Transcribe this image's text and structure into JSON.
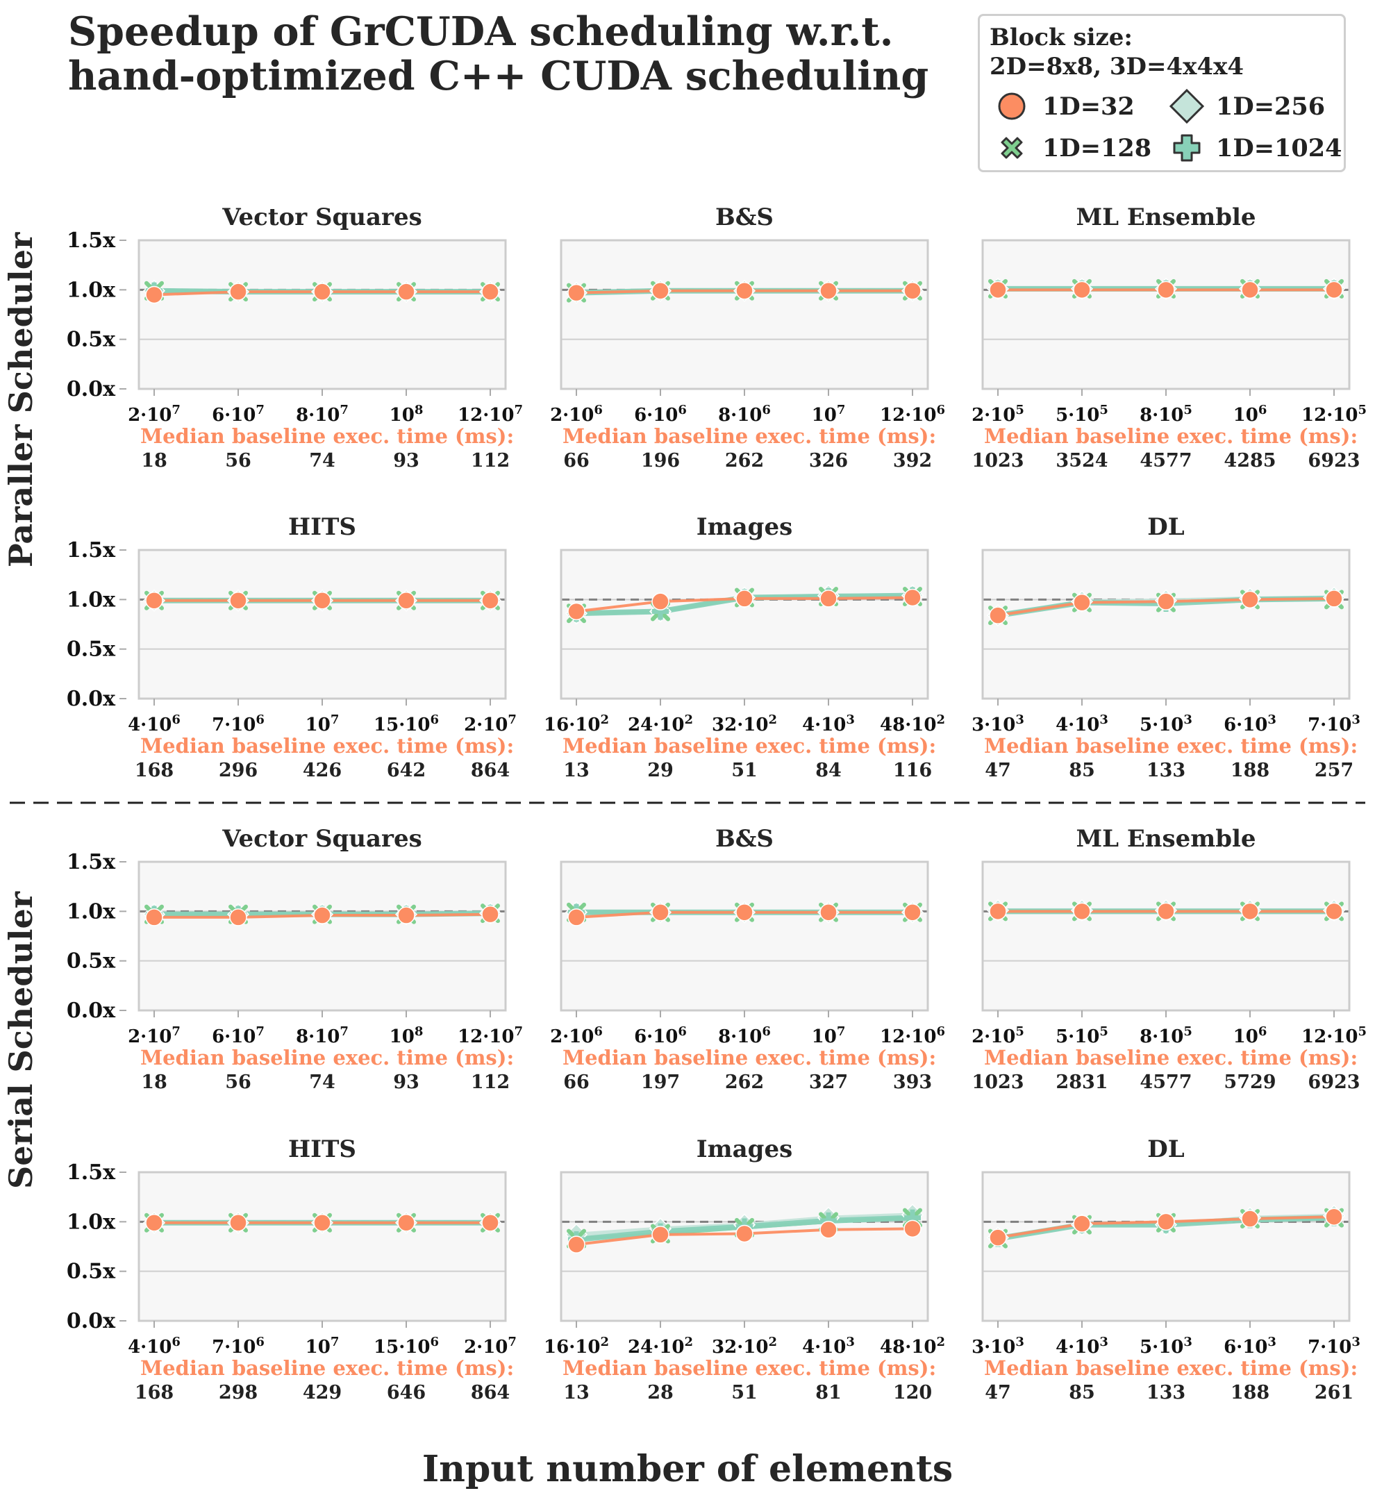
{
  "title": {
    "line1": "Speedup of GrCUDA scheduling w.r.t.",
    "line2": "hand-optimized C++ CUDA scheduling"
  },
  "legend": {
    "title_line1": "Block size:",
    "title_line2": "2D=8x8, 3D=4x4x4",
    "items": [
      {
        "label": "1D=32",
        "marker": "circle",
        "color": "#fc8d62"
      },
      {
        "label": "1D=256",
        "marker": "diamond",
        "color": "#c5e4da"
      },
      {
        "label": "1D=128",
        "marker": "x",
        "color": "#7fcf8f"
      },
      {
        "label": "1D=1024",
        "marker": "plus",
        "color": "#88d1b8"
      }
    ]
  },
  "row_labels": [
    "Paraller Scheduler",
    "Serial Scheduler"
  ],
  "xlabel": "Input number of elements",
  "baseline_label": "Median baseline exec. time (ms):",
  "colors": {
    "baseline": "#fc8d62",
    "reference": "#808080",
    "plot_bg": "#f7f7f7",
    "axis": "#cccccc"
  },
  "chart_data": [
    {
      "type": "line",
      "panel": "Vector Squares",
      "scheduler": "Paraller Scheduler",
      "title": "Vector Squares",
      "ylim": [
        0,
        1.5
      ],
      "yticks": [
        "0.0x",
        "0.5x",
        "1.0x",
        "1.5x"
      ],
      "x_ticks": [
        "2·10^7",
        "6·10^7",
        "8·10^7",
        "10^8",
        "12·10^7"
      ],
      "baseline_ms": [
        "18",
        "56",
        "74",
        "93",
        "112"
      ],
      "series": [
        {
          "name": "1D=32",
          "values": [
            0.95,
            0.98,
            0.98,
            0.98,
            0.98
          ]
        },
        {
          "name": "1D=128",
          "values": [
            0.99,
            0.98,
            0.98,
            0.98,
            0.98
          ]
        },
        {
          "name": "1D=256",
          "values": [
            0.99,
            0.98,
            0.98,
            0.98,
            0.98
          ]
        },
        {
          "name": "1D=1024",
          "values": [
            0.99,
            0.98,
            0.98,
            0.98,
            0.98
          ]
        }
      ]
    },
    {
      "type": "line",
      "panel": "B&S",
      "scheduler": "Paraller Scheduler",
      "title": "B&S",
      "ylim": [
        0,
        1.5
      ],
      "yticks": [
        "0.0x",
        "0.5x",
        "1.0x",
        "1.5x"
      ],
      "x_ticks": [
        "2·10^6",
        "6·10^6",
        "8·10^6",
        "10^7",
        "12·10^6"
      ],
      "baseline_ms": [
        "66",
        "196",
        "262",
        "326",
        "392"
      ],
      "series": [
        {
          "name": "1D=32",
          "values": [
            0.97,
            0.99,
            0.99,
            0.99,
            0.99
          ]
        },
        {
          "name": "1D=128",
          "values": [
            0.97,
            0.99,
            0.99,
            0.99,
            0.99
          ]
        },
        {
          "name": "1D=256",
          "values": [
            0.97,
            0.99,
            0.99,
            0.99,
            0.99
          ]
        },
        {
          "name": "1D=1024",
          "values": [
            0.97,
            0.99,
            0.99,
            0.99,
            0.99
          ]
        }
      ]
    },
    {
      "type": "line",
      "panel": "ML Ensemble",
      "scheduler": "Paraller Scheduler",
      "title": "ML Ensemble",
      "ylim": [
        0,
        1.5
      ],
      "yticks": [
        "0.0x",
        "0.5x",
        "1.0x",
        "1.5x"
      ],
      "x_ticks": [
        "2·10^5",
        "5·10^5",
        "8·10^5",
        "10^6",
        "12·10^5"
      ],
      "baseline_ms": [
        "1023",
        "3524",
        "4577",
        "4285",
        "6923"
      ],
      "series": [
        {
          "name": "1D=32",
          "values": [
            1.0,
            1.0,
            1.0,
            1.0,
            1.0
          ]
        },
        {
          "name": "1D=128",
          "values": [
            1.01,
            1.01,
            1.01,
            1.01,
            1.01
          ]
        },
        {
          "name": "1D=256",
          "values": [
            1.01,
            1.01,
            1.01,
            1.01,
            1.01
          ]
        },
        {
          "name": "1D=1024",
          "values": [
            1.01,
            1.01,
            1.01,
            1.01,
            1.01
          ]
        }
      ]
    },
    {
      "type": "line",
      "panel": "HITS",
      "scheduler": "Paraller Scheduler",
      "title": "HITS",
      "ylim": [
        0,
        1.5
      ],
      "yticks": [
        "0.0x",
        "0.5x",
        "1.0x",
        "1.5x"
      ],
      "x_ticks": [
        "4·10^6",
        "7·10^6",
        "10^7",
        "15·10^6",
        "2·10^7"
      ],
      "baseline_ms": [
        "168",
        "296",
        "426",
        "642",
        "864"
      ],
      "series": [
        {
          "name": "1D=32",
          "values": [
            0.99,
            0.99,
            0.99,
            0.99,
            0.99
          ]
        },
        {
          "name": "1D=128",
          "values": [
            0.99,
            0.99,
            0.99,
            0.99,
            0.99
          ]
        },
        {
          "name": "1D=256",
          "values": [
            0.99,
            0.99,
            0.99,
            0.99,
            0.99
          ]
        },
        {
          "name": "1D=1024",
          "values": [
            0.99,
            0.99,
            0.99,
            0.99,
            0.99
          ]
        }
      ]
    },
    {
      "type": "line",
      "panel": "Images",
      "scheduler": "Paraller Scheduler",
      "title": "Images",
      "ylim": [
        0,
        1.5
      ],
      "yticks": [
        "0.0x",
        "0.5x",
        "1.0x",
        "1.5x"
      ],
      "x_ticks": [
        "16·10^2",
        "24·10^2",
        "32·10^2",
        "4·10^3",
        "48·10^2"
      ],
      "baseline_ms": [
        "13",
        "29",
        "51",
        "84",
        "116"
      ],
      "series": [
        {
          "name": "1D=32",
          "values": [
            0.88,
            0.98,
            1.01,
            1.01,
            1.02
          ]
        },
        {
          "name": "1D=128",
          "values": [
            0.86,
            0.88,
            1.02,
            1.03,
            1.03
          ]
        },
        {
          "name": "1D=256",
          "values": [
            0.86,
            0.88,
            1.02,
            1.04,
            1.04
          ]
        },
        {
          "name": "1D=1024",
          "values": [
            0.86,
            0.88,
            1.02,
            1.03,
            1.04
          ]
        }
      ]
    },
    {
      "type": "line",
      "panel": "DL",
      "scheduler": "Paraller Scheduler",
      "title": "DL",
      "ylim": [
        0,
        1.5
      ],
      "yticks": [
        "0.0x",
        "0.5x",
        "1.0x",
        "1.5x"
      ],
      "x_ticks": [
        "3·10^3",
        "4·10^3",
        "5·10^3",
        "6·10^3",
        "7·10^3"
      ],
      "baseline_ms": [
        "47",
        "85",
        "133",
        "188",
        "257"
      ],
      "series": [
        {
          "name": "1D=32",
          "values": [
            0.84,
            0.97,
            0.98,
            1.0,
            1.01
          ]
        },
        {
          "name": "1D=128",
          "values": [
            0.84,
            0.97,
            0.97,
            1.0,
            1.0
          ]
        },
        {
          "name": "1D=256",
          "values": [
            0.84,
            0.98,
            0.99,
            1.01,
            1.02
          ]
        },
        {
          "name": "1D=1024",
          "values": [
            0.84,
            0.97,
            0.96,
            1.0,
            1.01
          ]
        }
      ]
    },
    {
      "type": "line",
      "panel": "Vector Squares",
      "scheduler": "Serial Scheduler",
      "title": "Vector Squares",
      "ylim": [
        0,
        1.5
      ],
      "yticks": [
        "0.0x",
        "0.5x",
        "1.0x",
        "1.5x"
      ],
      "x_ticks": [
        "2·10^7",
        "6·10^7",
        "8·10^7",
        "10^8",
        "12·10^7"
      ],
      "baseline_ms": [
        "18",
        "56",
        "74",
        "93",
        "112"
      ],
      "series": [
        {
          "name": "1D=32",
          "values": [
            0.94,
            0.94,
            0.96,
            0.96,
            0.97
          ]
        },
        {
          "name": "1D=128",
          "values": [
            0.97,
            0.97,
            0.97,
            0.97,
            0.98
          ]
        },
        {
          "name": "1D=256",
          "values": [
            0.97,
            0.97,
            0.97,
            0.97,
            0.98
          ]
        },
        {
          "name": "1D=1024",
          "values": [
            0.97,
            0.97,
            0.97,
            0.97,
            0.98
          ]
        }
      ]
    },
    {
      "type": "line",
      "panel": "B&S",
      "scheduler": "Serial Scheduler",
      "title": "B&S",
      "ylim": [
        0,
        1.5
      ],
      "yticks": [
        "0.0x",
        "0.5x",
        "1.0x",
        "1.5x"
      ],
      "x_ticks": [
        "2·10^6",
        "6·10^6",
        "8·10^6",
        "10^7",
        "12·10^6"
      ],
      "baseline_ms": [
        "66",
        "197",
        "262",
        "327",
        "393"
      ],
      "series": [
        {
          "name": "1D=32",
          "values": [
            0.94,
            0.99,
            0.99,
            0.99,
            0.99
          ]
        },
        {
          "name": "1D=128",
          "values": [
            0.99,
            0.99,
            0.99,
            0.99,
            0.99
          ]
        },
        {
          "name": "1D=256",
          "values": [
            0.99,
            0.99,
            0.99,
            0.99,
            0.99
          ]
        },
        {
          "name": "1D=1024",
          "values": [
            0.99,
            0.99,
            0.99,
            0.99,
            0.99
          ]
        }
      ]
    },
    {
      "type": "line",
      "panel": "ML Ensemble",
      "scheduler": "Serial Scheduler",
      "title": "ML Ensemble",
      "ylim": [
        0,
        1.5
      ],
      "yticks": [
        "0.0x",
        "0.5x",
        "1.0x",
        "1.5x"
      ],
      "x_ticks": [
        "2·10^5",
        "5·10^5",
        "8·10^5",
        "10^6",
        "12·10^5"
      ],
      "baseline_ms": [
        "1023",
        "2831",
        "4577",
        "5729",
        "6923"
      ],
      "series": [
        {
          "name": "1D=32",
          "values": [
            1.0,
            1.0,
            1.0,
            1.0,
            1.0
          ]
        },
        {
          "name": "1D=128",
          "values": [
            1.0,
            1.0,
            1.0,
            1.0,
            1.0
          ]
        },
        {
          "name": "1D=256",
          "values": [
            1.01,
            1.01,
            1.01,
            1.01,
            1.01
          ]
        },
        {
          "name": "1D=1024",
          "values": [
            1.0,
            1.0,
            1.0,
            1.0,
            1.0
          ]
        }
      ]
    },
    {
      "type": "line",
      "panel": "HITS",
      "scheduler": "Serial Scheduler",
      "title": "HITS",
      "ylim": [
        0,
        1.5
      ],
      "yticks": [
        "0.0x",
        "0.5x",
        "1.0x",
        "1.5x"
      ],
      "x_ticks": [
        "4·10^6",
        "7·10^6",
        "10^7",
        "15·10^6",
        "2·10^7"
      ],
      "baseline_ms": [
        "168",
        "298",
        "429",
        "646",
        "864"
      ],
      "series": [
        {
          "name": "1D=32",
          "values": [
            0.99,
            0.99,
            0.99,
            0.99,
            0.99
          ]
        },
        {
          "name": "1D=128",
          "values": [
            0.99,
            0.99,
            0.99,
            0.99,
            0.99
          ]
        },
        {
          "name": "1D=256",
          "values": [
            0.99,
            0.99,
            0.99,
            0.99,
            0.99
          ]
        },
        {
          "name": "1D=1024",
          "values": [
            0.99,
            0.99,
            0.99,
            0.99,
            0.99
          ]
        }
      ]
    },
    {
      "type": "line",
      "panel": "Images",
      "scheduler": "Serial Scheduler",
      "title": "Images",
      "ylim": [
        0,
        1.5
      ],
      "yticks": [
        "0.0x",
        "0.5x",
        "1.0x",
        "1.5x"
      ],
      "x_ticks": [
        "16·10^2",
        "24·10^2",
        "32·10^2",
        "4·10^3",
        "48·10^2"
      ],
      "baseline_ms": [
        "13",
        "28",
        "51",
        "81",
        "120"
      ],
      "series": [
        {
          "name": "1D=32",
          "values": [
            0.77,
            0.87,
            0.88,
            0.92,
            0.93
          ]
        },
        {
          "name": "1D=128",
          "values": [
            0.83,
            0.88,
            0.94,
            1.0,
            1.04
          ]
        },
        {
          "name": "1D=256",
          "values": [
            0.87,
            0.93,
            0.97,
            1.04,
            1.07
          ]
        },
        {
          "name": "1D=1024",
          "values": [
            0.82,
            0.9,
            0.95,
            1.01,
            1.04
          ]
        }
      ]
    },
    {
      "type": "line",
      "panel": "DL",
      "scheduler": "Serial Scheduler",
      "title": "DL",
      "ylim": [
        0,
        1.5
      ],
      "yticks": [
        "0.0x",
        "0.5x",
        "1.0x",
        "1.5x"
      ],
      "x_ticks": [
        "3·10^3",
        "4·10^3",
        "5·10^3",
        "6·10^3",
        "7·10^3"
      ],
      "baseline_ms": [
        "47",
        "85",
        "133",
        "188",
        "261"
      ],
      "series": [
        {
          "name": "1D=32",
          "values": [
            0.84,
            0.98,
            1.0,
            1.03,
            1.05
          ]
        },
        {
          "name": "1D=128",
          "values": [
            0.83,
            0.97,
            0.99,
            1.03,
            1.04
          ]
        },
        {
          "name": "1D=256",
          "values": [
            0.84,
            0.97,
            0.97,
            1.04,
            1.06
          ]
        },
        {
          "name": "1D=1024",
          "values": [
            0.83,
            0.97,
            0.97,
            1.02,
            1.04
          ]
        }
      ]
    }
  ]
}
